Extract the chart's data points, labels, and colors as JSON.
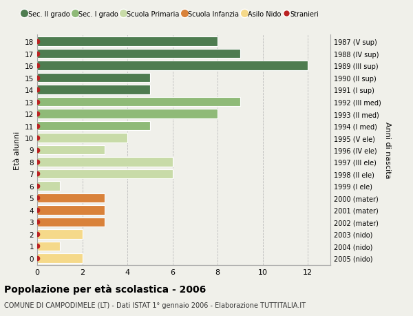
{
  "ages": [
    18,
    17,
    16,
    15,
    14,
    13,
    12,
    11,
    10,
    9,
    8,
    7,
    6,
    5,
    4,
    3,
    2,
    1,
    0
  ],
  "years": [
    "1987 (V sup)",
    "1988 (IV sup)",
    "1989 (III sup)",
    "1990 (II sup)",
    "1991 (I sup)",
    "1992 (III med)",
    "1993 (II med)",
    "1994 (I med)",
    "1995 (V ele)",
    "1996 (IV ele)",
    "1997 (III ele)",
    "1998 (II ele)",
    "1999 (I ele)",
    "2000 (mater)",
    "2001 (mater)",
    "2002 (mater)",
    "2003 (nido)",
    "2004 (nido)",
    "2005 (nido)"
  ],
  "values": [
    8,
    9,
    12,
    5,
    5,
    9,
    8,
    5,
    4,
    3,
    6,
    6,
    1,
    3,
    3,
    3,
    2,
    1,
    2
  ],
  "categories": [
    "Sec. II grado",
    "Sec. II grado",
    "Sec. II grado",
    "Sec. II grado",
    "Sec. II grado",
    "Sec. I grado",
    "Sec. I grado",
    "Sec. I grado",
    "Scuola Primaria",
    "Scuola Primaria",
    "Scuola Primaria",
    "Scuola Primaria",
    "Scuola Primaria",
    "Scuola Infanzia",
    "Scuola Infanzia",
    "Scuola Infanzia",
    "Asilo Nido",
    "Asilo Nido",
    "Asilo Nido"
  ],
  "colors": {
    "Sec. II grado": "#4e7c50",
    "Sec. I grado": "#8fba78",
    "Scuola Primaria": "#c8dba8",
    "Scuola Infanzia": "#d9823a",
    "Asilo Nido": "#f5d98a"
  },
  "stranieri_color": "#bb2222",
  "legend_labels": [
    "Sec. II grado",
    "Sec. I grado",
    "Scuola Primaria",
    "Scuola Infanzia",
    "Asilo Nido",
    "Stranieri"
  ],
  "title": "Popolazione per età scolastica - 2006",
  "subtitle": "COMUNE DI CAMPODIMELE (LT) - Dati ISTAT 1° gennaio 2006 - Elaborazione TUTTITALIA.IT",
  "ylabel": "Età alunni",
  "right_label": "Anni di nascita",
  "xlim": [
    0,
    13
  ],
  "xticks": [
    0,
    2,
    4,
    6,
    8,
    10,
    12
  ],
  "bg_color": "#f0f0ea",
  "plot_bg": "#e8e8e0",
  "grid_color": "#bbbbbb",
  "bar_height": 0.78
}
